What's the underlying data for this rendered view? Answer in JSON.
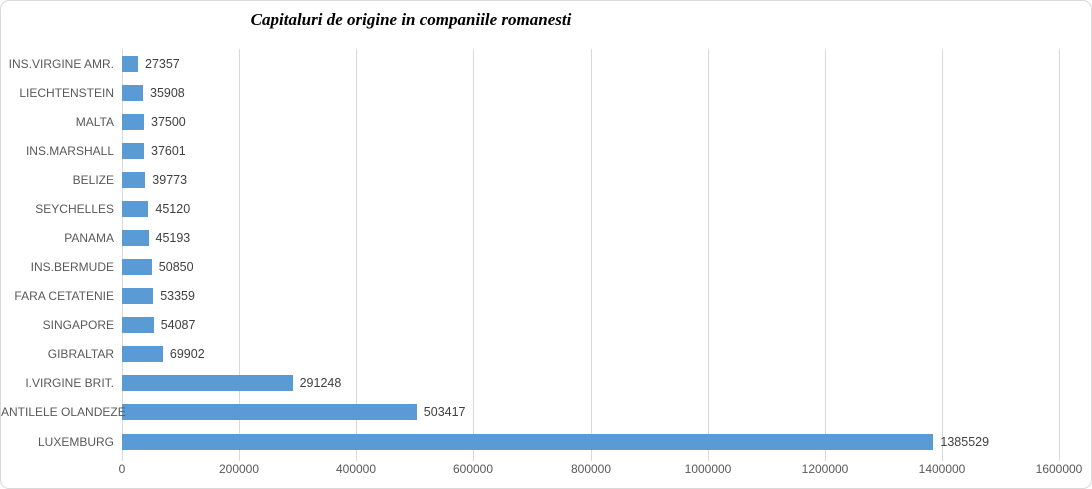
{
  "chart_data": {
    "type": "bar",
    "orientation": "horizontal",
    "title": "Capitaluri de origine in companiile romanesti",
    "categories": [
      "INS.VIRGINE AMR.",
      "LIECHTENSTEIN",
      "MALTA",
      "INS.MARSHALL",
      "BELIZE",
      "SEYCHELLES",
      "PANAMA",
      "INS.BERMUDE",
      "FARA CETATENIE",
      "SINGAPORE",
      "GIBRALTAR",
      "I.VIRGINE BRIT.",
      "ANTILELE OLANDEZE",
      "LUXEMBURG"
    ],
    "values": [
      27357,
      35908,
      37500,
      37601,
      39773,
      45120,
      45193,
      50850,
      53359,
      54087,
      69902,
      291248,
      503417,
      1385529
    ],
    "data_labels": [
      "27357",
      "35908",
      "37500",
      "37601",
      "39773",
      "45120",
      "45193",
      "50850",
      "53359",
      "54087",
      "69902",
      "291248",
      "503417",
      "1385529"
    ],
    "xlabel": "",
    "ylabel": "",
    "x_axis": {
      "min": 0,
      "max": 1600000,
      "tick_interval": 200000,
      "tick_labels": [
        "0",
        "200000",
        "400000",
        "600000",
        "800000",
        "1000000",
        "1200000",
        "1400000",
        "1600000"
      ]
    },
    "grid": "vertical-only",
    "legend": "none",
    "colors": {
      "bar": "#5B9BD5",
      "gridline": "#D9D9D9",
      "category_label": "#595959",
      "value_label": "#404040",
      "tick_label": "#595959",
      "title": "#000000",
      "border": "#D9D9D9",
      "background": "#FFFFFF"
    }
  }
}
